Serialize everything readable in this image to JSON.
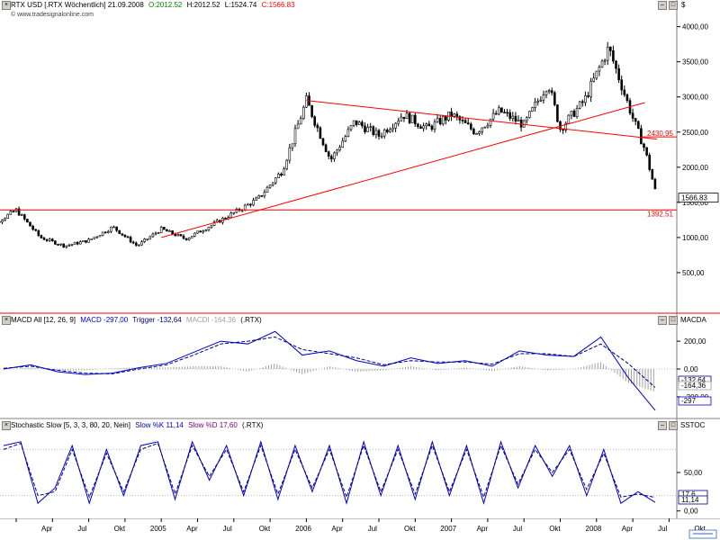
{
  "header": {
    "instrument": "RTX USD [.RTX Wöchentlich] 21.09.2008",
    "open": "O:2012.52",
    "high": "H:2012.52",
    "low": "L:1524.74",
    "close": "C:1566.83",
    "watermark": "© www.tradesignalonline.com",
    "unit": "$"
  },
  "macd": {
    "header_label": "MACD All [12, 26, 9]",
    "macd_legend": "MACD -297,00",
    "trigger_legend": "Trigger -132,64",
    "histo_legend": "MACDI -164,36",
    "symbol": "(.RTX)",
    "unit": "MACDA",
    "badges": [
      "-132,64",
      "-164,36",
      "-297"
    ]
  },
  "stoch": {
    "header_label": "Stochastic Slow [5, 3, 3, 80, 20, Nein]",
    "k_legend": "Slow %K 11,14",
    "d_legend": "Slow %D 17,60",
    "symbol": "(.RTX)",
    "unit": "SSTOC",
    "badges": [
      "17,6",
      "11,14"
    ]
  },
  "colors": {
    "price": "#000000",
    "trendline": "#ff0000",
    "macd": "#0000cc",
    "trigger": "#000080",
    "histogram": "#a0a0a0",
    "up_value": "#008000",
    "down_value": "#ff0000"
  },
  "chart_data": [
    {
      "type": "candlestick",
      "title": "RTX USD [.RTX Wöchentlich] 21.09.2008",
      "ylabel": "$",
      "ylim": [
        0,
        4200
      ],
      "yticks": [
        500,
        1000,
        1500,
        2000,
        2500,
        3000,
        3500,
        4000
      ],
      "ytick_labels": [
        "500,00",
        "1000,00",
        "1500,00",
        "2000,00",
        "2500,00",
        "3000,00",
        "3500,00",
        "4000,00"
      ],
      "xtick_labels": [
        "Apr",
        "Jul",
        "Okt",
        "2005",
        "Apr",
        "Jul",
        "Okt",
        "2006",
        "Apr",
        "Jul",
        "Okt",
        "2007",
        "Apr",
        "Jul",
        "Okt",
        "2008",
        "Apr",
        "Jul",
        "Okt"
      ],
      "x_start": "2004-01",
      "x_step_months": 3,
      "price_path": [
        [
          "2004-01",
          1080
        ],
        [
          "2004-04",
          1390
        ],
        [
          "2004-06",
          1000
        ],
        [
          "2004-08",
          880
        ],
        [
          "2004-10",
          960
        ],
        [
          "2004-12",
          1150
        ],
        [
          "2005-02",
          880
        ],
        [
          "2005-04",
          1120
        ],
        [
          "2005-06",
          980
        ],
        [
          "2005-08",
          1160
        ],
        [
          "2005-10",
          1350
        ],
        [
          "2005-12",
          1550
        ],
        [
          "2006-02",
          1950
        ],
        [
          "2006-04",
          2950
        ],
        [
          "2006-06",
          2100
        ],
        [
          "2006-08",
          2650
        ],
        [
          "2006-10",
          2450
        ],
        [
          "2006-12",
          2750
        ],
        [
          "2007-02",
          2550
        ],
        [
          "2007-04",
          2750
        ],
        [
          "2007-06",
          2500
        ],
        [
          "2007-08",
          2800
        ],
        [
          "2007-10",
          2600
        ],
        [
          "2007-12",
          3200
        ],
        [
          "2008-01",
          2550
        ],
        [
          "2008-03",
          2950
        ],
        [
          "2008-05",
          3700
        ],
        [
          "2008-07",
          2700
        ],
        [
          "2008-08",
          2250
        ],
        [
          "2008-09",
          1566
        ]
      ],
      "hlines": [
        {
          "value": 2430.95,
          "label": "2430,95"
        },
        {
          "value": 1392.51,
          "label": "1392,51"
        }
      ],
      "trendlines": [
        {
          "from": [
            "2005-04",
            1000
          ],
          "to": [
            "2008-08",
            2920
          ]
        },
        {
          "from": [
            "2006-04",
            2950
          ],
          "to": [
            "2008-09",
            2400
          ]
        }
      ],
      "last_value": {
        "value": 1566.83,
        "label": "1566,83"
      }
    },
    {
      "type": "line",
      "title": "MACD All [12, 26, 9]",
      "ylim": [
        -330,
        330
      ],
      "yticks": [
        200,
        0,
        -200
      ],
      "ytick_labels": [
        "200,00",
        "0,00",
        "-200,00"
      ],
      "series": [
        {
          "name": "MACD",
          "values": [
            0,
            30,
            -20,
            -40,
            -30,
            10,
            40,
            120,
            200,
            180,
            270,
            100,
            130,
            60,
            20,
            80,
            40,
            60,
            20,
            130,
            100,
            90,
            230,
            -60,
            -297
          ]
        },
        {
          "name": "Trigger",
          "values": [
            5,
            20,
            -10,
            -30,
            -35,
            0,
            30,
            100,
            180,
            200,
            230,
            140,
            110,
            80,
            30,
            60,
            50,
            50,
            35,
            110,
            110,
            90,
            180,
            40,
            -132.64
          ]
        }
      ],
      "histogram": {
        "name": "MACDI",
        "values": [
          -5,
          10,
          -10,
          -10,
          5,
          10,
          10,
          20,
          20,
          -20,
          40,
          -40,
          20,
          -20,
          -10,
          20,
          -10,
          10,
          -15,
          20,
          -10,
          0,
          50,
          -100,
          -164.36
        ]
      }
    },
    {
      "type": "line",
      "title": "Stochastic Slow [5, 3, 3, 80, 20, Nein]",
      "ylim": [
        -5,
        105
      ],
      "yticks": [
        50,
        0
      ],
      "ytick_labels": [
        "50,00",
        "0,00"
      ],
      "hlines": [
        80,
        20
      ],
      "series": [
        {
          "name": "Slow %K",
          "values": [
            85,
            90,
            10,
            30,
            85,
            10,
            80,
            20,
            85,
            90,
            15,
            90,
            40,
            85,
            20,
            90,
            15,
            85,
            25,
            85,
            10,
            90,
            20,
            85,
            15,
            90,
            20,
            85,
            10,
            90,
            30,
            85,
            45,
            85,
            20,
            80,
            10,
            25,
            11.14
          ]
        },
        {
          "name": "Slow %D",
          "values": [
            80,
            88,
            20,
            25,
            80,
            18,
            75,
            25,
            80,
            88,
            22,
            85,
            45,
            80,
            25,
            85,
            22,
            80,
            30,
            80,
            18,
            85,
            25,
            80,
            22,
            85,
            25,
            80,
            18,
            85,
            35,
            80,
            50,
            80,
            28,
            75,
            18,
            22,
            17.6
          ]
        }
      ]
    }
  ]
}
